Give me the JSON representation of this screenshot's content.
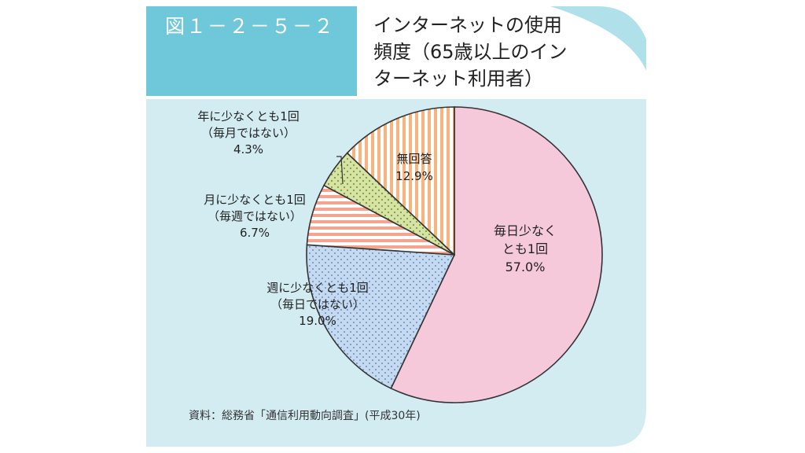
{
  "figure": {
    "number": "図１－２－５－２",
    "title_lines": [
      "インターネットの使用",
      "頻度（65歳以上のイン",
      "ターネット利用者）"
    ],
    "source": "資料：総務省「通信利用動向調査」(平成30年)"
  },
  "colors": {
    "header_blue": "#6fc8da",
    "panel_bg": "#d3ecf2",
    "daily": "#f5c8da",
    "weekly": "#c5daf0",
    "monthly": "#f4a592",
    "yearly": "#d6e3a4",
    "noanswer": "#f7b47e",
    "outline": "#333333"
  },
  "chart_data": {
    "type": "pie",
    "start_angle_deg": 0,
    "direction": "clockwise",
    "slices": [
      {
        "label_lines": [
          "毎日少なく",
          "とも1回"
        ],
        "value": 57.0,
        "value_label": "57.0%",
        "pattern": "solid",
        "color_key": "daily"
      },
      {
        "label_lines": [
          "週に少なくとも1回",
          "（毎日ではない）"
        ],
        "value": 19.0,
        "value_label": "19.0%",
        "pattern": "dots",
        "color_key": "weekly"
      },
      {
        "label_lines": [
          "月に少なくとも1回",
          "（毎週ではない）"
        ],
        "value": 6.7,
        "value_label": "6.7%",
        "pattern": "hstripes",
        "color_key": "monthly"
      },
      {
        "label_lines": [
          "年に少なくとも1回",
          "（毎月ではない）"
        ],
        "value": 4.3,
        "value_label": "4.3%",
        "pattern": "dots",
        "color_key": "yearly"
      },
      {
        "label_lines": [
          "無回答"
        ],
        "value": 12.9,
        "value_label": "12.9%",
        "pattern": "vstripes",
        "color_key": "noanswer"
      }
    ]
  }
}
